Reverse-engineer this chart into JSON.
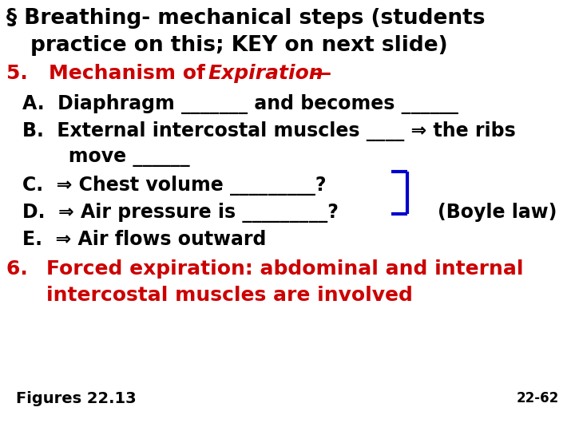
{
  "background_color": "#ffffff",
  "title_line1": "§ Breathing- mechanical steps (students",
  "title_line2": "practice on this; KEY on next slide)",
  "title_color": "#000000",
  "title_fontsize": 19,
  "item5_prefix": "5.   Mechanism of ",
  "item5_expiration": "Expiration",
  "item5_dash": "—",
  "item5_color": "#cc0000",
  "item5_fontsize": 18,
  "itemA": "A.  Diaphragm _______ and becomes ______",
  "itemB1": "B.  External intercostal muscles ____ ⇒ the ribs",
  "itemB2": "       move ______",
  "itemC": "C.  ⇒ Chest volume _________?",
  "itemD": "D.  ⇒ Air pressure is _________?",
  "itemD2": "(Boyle law)",
  "itemE": "E.  ⇒ Air flows outward",
  "sub_fontsize": 17,
  "sub_color": "#000000",
  "item6_prefix": "6.   ",
  "item6_line1": "Forced expiration: abdominal and internal",
  "item6_line2": "intercostal muscles are involved",
  "item6_color": "#cc0000",
  "item6_fontsize": 18,
  "figures_text": "Figures 22.13",
  "figures_fontsize": 14,
  "figures_color": "#000000",
  "page_num": "22-62",
  "page_fontsize": 12,
  "bracket_color": "#0000cc"
}
